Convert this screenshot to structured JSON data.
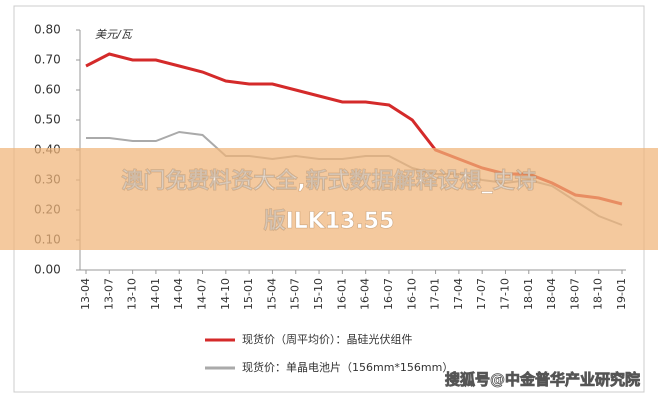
{
  "chart_data": {
    "type": "line",
    "y_label": "美元/瓦",
    "categories": [
      "13-04",
      "13-07",
      "13-10",
      "14-01",
      "14-04",
      "14-07",
      "14-10",
      "15-01",
      "15-04",
      "15-07",
      "15-10",
      "16-01",
      "16-04",
      "16-07",
      "16-10",
      "17-01",
      "17-04",
      "17-07",
      "17-10",
      "18-01",
      "18-04",
      "18-07",
      "18-10",
      "19-01"
    ],
    "series": [
      {
        "name": "现货价（周平均价）：晶硅光伏组件",
        "color": "#d42a2a",
        "values": [
          0.68,
          0.72,
          0.7,
          0.7,
          0.68,
          0.66,
          0.63,
          0.62,
          0.62,
          0.6,
          0.58,
          0.56,
          0.56,
          0.55,
          0.5,
          0.4,
          0.37,
          0.34,
          0.32,
          0.32,
          0.29,
          0.25,
          0.24,
          0.22
        ]
      },
      {
        "name": "现货价：单晶电池片（156mm*156mm）",
        "color": "#aaaaaa",
        "values": [
          0.44,
          0.44,
          0.43,
          0.43,
          0.46,
          0.45,
          0.38,
          0.38,
          0.37,
          0.38,
          0.37,
          0.37,
          0.38,
          0.38,
          0.34,
          0.32,
          0.32,
          0.3,
          0.29,
          0.3,
          0.28,
          0.23,
          0.18,
          0.15
        ]
      }
    ],
    "ylim": [
      0,
      0.8
    ],
    "yticks": [
      {
        "value": 0,
        "label": "0.00"
      },
      {
        "value": 0.1,
        "label": "0.10"
      },
      {
        "value": 0.2,
        "label": "0.20"
      },
      {
        "value": 0.3,
        "label": "0.30"
      },
      {
        "value": 0.4,
        "label": "0.40"
      },
      {
        "value": 0.5,
        "label": "0.50"
      },
      {
        "value": 0.6,
        "label": "0.60"
      },
      {
        "value": 0.7,
        "label": "0.70"
      },
      {
        "value": 0.8,
        "label": "0.80"
      }
    ]
  },
  "overlay": {
    "lines": [
      "澳门免费料资大全,新式数据解释设想_史诗",
      "版ILK13.55"
    ]
  },
  "watermark": "搜狐号@中金普华产业研究院"
}
